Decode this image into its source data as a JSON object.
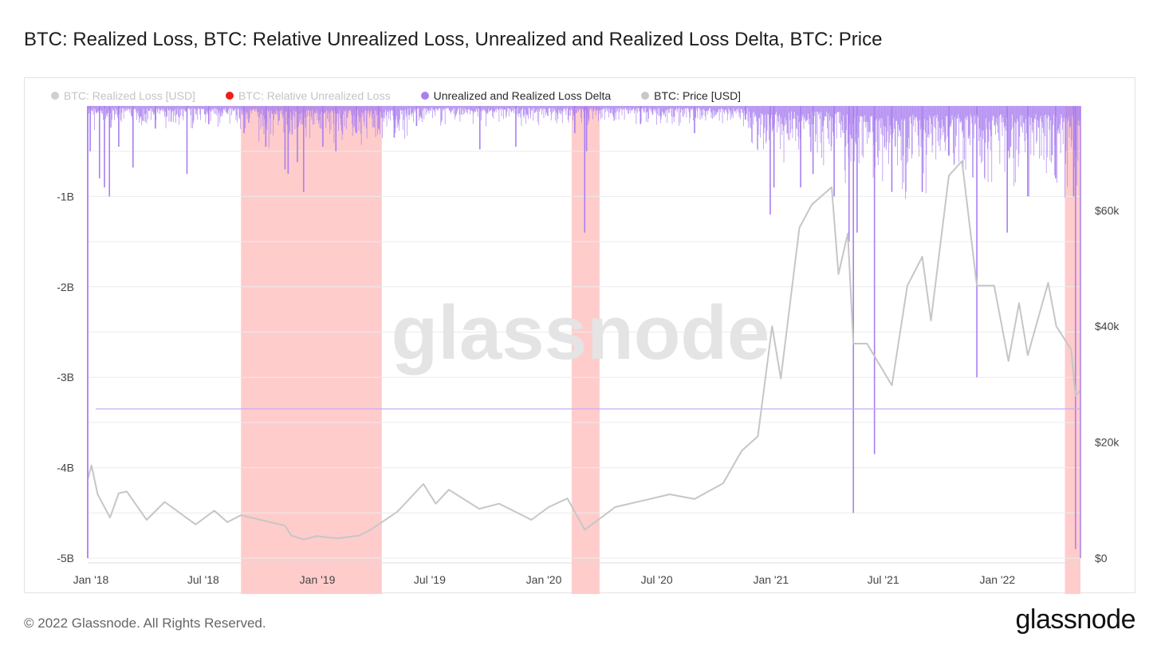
{
  "page": {
    "title": "BTC: Realized Loss, BTC: Relative Unrealized Loss, Unrealized and Realized Loss Delta, BTC: Price",
    "copyright": "© 2022 Glassnode. All Rights Reserved.",
    "logo": "glassnode",
    "watermark": "glassnode"
  },
  "legend": [
    {
      "label": "BTC: Realized Loss [USD]",
      "color": "#cfcfcf",
      "state": "muted"
    },
    {
      "label": "BTC: Relative Unrealized Loss",
      "color": "#f01d1d",
      "state": "muted"
    },
    {
      "label": "Unrealized and Realized Loss Delta",
      "color": "#a97ff0",
      "state": "active"
    },
    {
      "label": "BTC: Price [USD]",
      "color": "#c8c8c8",
      "state": "active"
    }
  ],
  "chart_data": {
    "type": "bar",
    "x_ticks": [
      "Jan '18",
      "Jul '18",
      "Jan '19",
      "Jul '19",
      "Jan '20",
      "Jul '20",
      "Jan '21",
      "Jul '21",
      "Jan '22"
    ],
    "y_left_ticks": [
      "-1B",
      "-2B",
      "-3B",
      "-4B",
      "-5B"
    ],
    "y_left_values": [
      -1,
      -2,
      -3,
      -4,
      -5
    ],
    "y_left_range": [
      -5,
      0
    ],
    "y_right_ticks": [
      "$60k",
      "$40k",
      "$20k",
      "$0"
    ],
    "y_right_values": [
      60000,
      40000,
      20000,
      0
    ],
    "y_right_range": [
      0,
      78000
    ],
    "x_range": [
      "2018-01-01",
      "2022-05-20"
    ],
    "grid": true,
    "legend_position": "top-left",
    "reference_line": {
      "value": -3.35,
      "color": "#c7aef5"
    },
    "shaded_regions": [
      {
        "start": "2018-09-05",
        "end": "2019-04-20"
      },
      {
        "start": "2020-02-20",
        "end": "2020-04-05"
      },
      {
        "start": "2022-04-25",
        "end": "2022-05-20"
      }
    ],
    "series": [
      {
        "name": "Unrealized and Realized Loss Delta",
        "type": "bar",
        "axis": "left",
        "color": "#a97ff0",
        "points": [
          [
            "2018-01-01",
            -5.0
          ],
          [
            "2018-01-05",
            -0.5
          ],
          [
            "2018-01-20",
            -0.8
          ],
          [
            "2018-01-28",
            -0.9
          ],
          [
            "2018-02-05",
            -1.0
          ],
          [
            "2018-02-20",
            -0.45
          ],
          [
            "2018-03-15",
            -0.68
          ],
          [
            "2018-04-20",
            -0.25
          ],
          [
            "2018-06-10",
            -0.75
          ],
          [
            "2018-07-15",
            -0.2
          ],
          [
            "2018-09-10",
            -0.3
          ],
          [
            "2018-10-15",
            -0.45
          ],
          [
            "2018-11-15",
            -0.7
          ],
          [
            "2018-11-20",
            -0.75
          ],
          [
            "2018-12-05",
            -0.62
          ],
          [
            "2018-12-15",
            -0.95
          ],
          [
            "2019-01-15",
            -0.45
          ],
          [
            "2019-02-05",
            -0.5
          ],
          [
            "2019-03-10",
            -0.3
          ],
          [
            "2019-04-15",
            -0.25
          ],
          [
            "2019-05-10",
            -0.35
          ],
          [
            "2019-06-15",
            -0.22
          ],
          [
            "2019-09-25",
            -0.48
          ],
          [
            "2019-11-22",
            -0.45
          ],
          [
            "2020-02-25",
            -0.3
          ],
          [
            "2020-03-12",
            -1.4
          ],
          [
            "2020-03-15",
            -0.5
          ],
          [
            "2020-06-10",
            -0.2
          ],
          [
            "2020-09-05",
            -0.3
          ],
          [
            "2020-11-26",
            -0.15
          ],
          [
            "2021-01-05",
            -1.2
          ],
          [
            "2021-01-11",
            -0.9
          ],
          [
            "2021-02-23",
            -0.9
          ],
          [
            "2021-03-15",
            -0.75
          ],
          [
            "2021-04-18",
            -1.0
          ],
          [
            "2021-05-12",
            -1.5
          ],
          [
            "2021-05-19",
            -4.5
          ],
          [
            "2021-05-25",
            -1.4
          ],
          [
            "2021-06-22",
            -3.85
          ],
          [
            "2021-07-20",
            -0.95
          ],
          [
            "2021-09-07",
            -0.95
          ],
          [
            "2021-10-20",
            -0.55
          ],
          [
            "2021-12-04",
            -3.0
          ],
          [
            "2022-01-22",
            -1.4
          ],
          [
            "2022-02-24",
            -1.0
          ],
          [
            "2022-04-10",
            -0.8
          ],
          [
            "2022-05-09",
            -1.0
          ],
          [
            "2022-05-12",
            -4.9
          ]
        ]
      },
      {
        "name": "BTC: Price [USD]",
        "type": "line",
        "axis": "right",
        "color": "#c6c6c6",
        "points": [
          [
            "2018-01-01",
            13500
          ],
          [
            "2018-01-07",
            16000
          ],
          [
            "2018-01-17",
            11000
          ],
          [
            "2018-02-06",
            7000
          ],
          [
            "2018-02-20",
            11200
          ],
          [
            "2018-03-05",
            11500
          ],
          [
            "2018-04-06",
            6600
          ],
          [
            "2018-05-05",
            9700
          ],
          [
            "2018-06-24",
            5800
          ],
          [
            "2018-07-24",
            8200
          ],
          [
            "2018-08-14",
            6200
          ],
          [
            "2018-09-05",
            7400
          ],
          [
            "2018-10-15",
            6400
          ],
          [
            "2018-11-15",
            5600
          ],
          [
            "2018-11-25",
            3900
          ],
          [
            "2018-12-15",
            3200
          ],
          [
            "2019-01-05",
            3800
          ],
          [
            "2019-02-07",
            3400
          ],
          [
            "2019-03-15",
            3900
          ],
          [
            "2019-04-02",
            4900
          ],
          [
            "2019-05-15",
            8000
          ],
          [
            "2019-06-26",
            12800
          ],
          [
            "2019-07-16",
            9400
          ],
          [
            "2019-08-06",
            11800
          ],
          [
            "2019-09-24",
            8500
          ],
          [
            "2019-10-26",
            9400
          ],
          [
            "2019-12-17",
            6600
          ],
          [
            "2020-01-14",
            8800
          ],
          [
            "2020-02-13",
            10300
          ],
          [
            "2020-03-12",
            4900
          ],
          [
            "2020-04-05",
            6800
          ],
          [
            "2020-04-30",
            8800
          ],
          [
            "2020-06-01",
            9600
          ],
          [
            "2020-07-27",
            11000
          ],
          [
            "2020-09-05",
            10200
          ],
          [
            "2020-10-21",
            12900
          ],
          [
            "2020-11-20",
            18500
          ],
          [
            "2020-12-16",
            21000
          ],
          [
            "2021-01-08",
            40000
          ],
          [
            "2021-01-22",
            31000
          ],
          [
            "2021-02-21",
            57000
          ],
          [
            "2021-03-13",
            61000
          ],
          [
            "2021-04-14",
            64000
          ],
          [
            "2021-04-25",
            49000
          ],
          [
            "2021-05-10",
            56000
          ],
          [
            "2021-05-19",
            37000
          ],
          [
            "2021-06-10",
            37000
          ],
          [
            "2021-07-20",
            29800
          ],
          [
            "2021-08-14",
            47000
          ],
          [
            "2021-09-07",
            52000
          ],
          [
            "2021-09-21",
            41000
          ],
          [
            "2021-10-20",
            66000
          ],
          [
            "2021-11-10",
            68500
          ],
          [
            "2021-12-04",
            47000
          ],
          [
            "2022-01-01",
            47000
          ],
          [
            "2022-01-24",
            34000
          ],
          [
            "2022-02-10",
            44000
          ],
          [
            "2022-02-24",
            35000
          ],
          [
            "2022-03-29",
            47500
          ],
          [
            "2022-04-11",
            40000
          ],
          [
            "2022-05-05",
            36000
          ],
          [
            "2022-05-12",
            28000
          ],
          [
            "2022-05-20",
            29000
          ]
        ]
      }
    ]
  }
}
